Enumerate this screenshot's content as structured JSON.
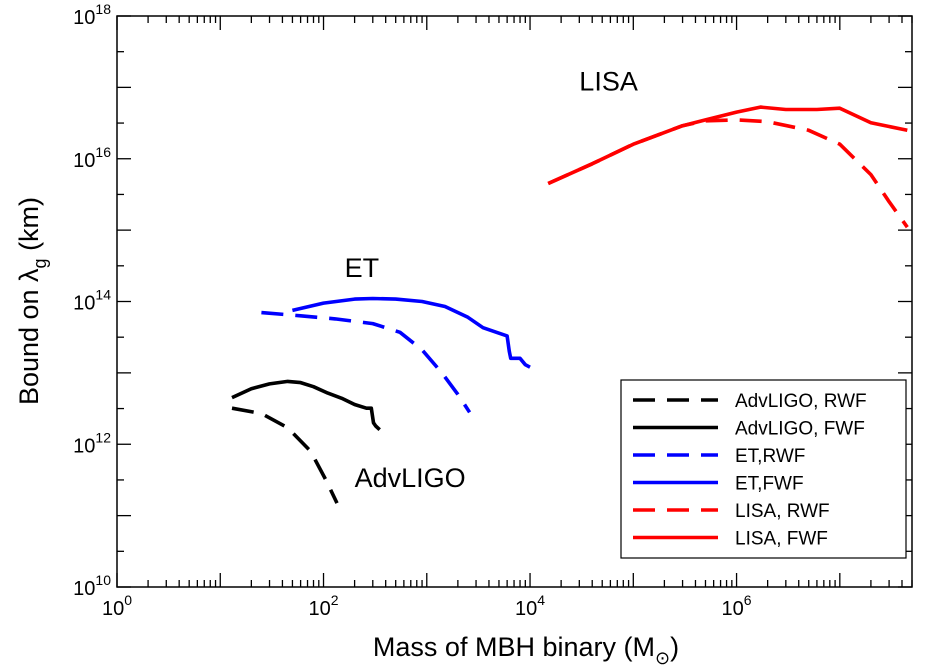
{
  "chart_data": {
    "type": "line",
    "title": "",
    "xlabel": "Mass of MBH binary (M",
    "xlabel_sub": "⊙",
    "xlabel_close": ")",
    "ylabel": "Bound on λ",
    "ylabel_sub": "g",
    "ylabel_tail": " (km)",
    "x_scale": "log",
    "y_scale": "log",
    "xlim": [
      1,
      50000000
    ],
    "ylim": [
      10000000000.0,
      1e+18
    ],
    "x_ticks": [
      {
        "value": 1,
        "base": "10",
        "exp": "0"
      },
      {
        "value": 100,
        "base": "10",
        "exp": "2"
      },
      {
        "value": 10000,
        "base": "10",
        "exp": "4"
      },
      {
        "value": 1000000,
        "base": "10",
        "exp": "6"
      }
    ],
    "y_ticks": [
      {
        "value": 10000000000.0,
        "base": "10",
        "exp": "10"
      },
      {
        "value": 1000000000000.0,
        "base": "10",
        "exp": "12"
      },
      {
        "value": 100000000000000.0,
        "base": "10",
        "exp": "14"
      },
      {
        "value": 1e+16,
        "base": "10",
        "exp": "16"
      },
      {
        "value": 1e+18,
        "base": "10",
        "exp": "18"
      }
    ],
    "grid": false,
    "legend_position": "bottom-right",
    "series": [
      {
        "name": "AdvLIGO, RWF",
        "color": "#000000",
        "dash": "dashed",
        "x": [
          13,
          25,
          45,
          75,
          105,
          135
        ],
        "y": [
          3200000000000.0,
          2700000000000.0,
          1700000000000.0,
          800000000000.0,
          320000000000.0,
          150000000000.0
        ]
      },
      {
        "name": "AdvLIGO, FWF",
        "color": "#000000",
        "dash": "solid",
        "x": [
          13,
          20,
          30,
          45,
          60,
          80,
          110,
          150,
          200,
          260,
          290,
          305,
          320,
          350
        ],
        "y": [
          4500000000000.0,
          6000000000000.0,
          7000000000000.0,
          7600000000000.0,
          7300000000000.0,
          6400000000000.0,
          5200000000000.0,
          4400000000000.0,
          3600000000000.0,
          3200000000000.0,
          3200000000000.0,
          2000000000000.0,
          1800000000000.0,
          1600000000000.0
        ]
      },
      {
        "name": "ET,RWF",
        "color": "#0000ff",
        "dash": "dashed",
        "x": [
          25,
          60,
          130,
          300,
          550,
          900,
          1400,
          2000,
          2600
        ],
        "y": [
          70000000000000.0,
          63000000000000.0,
          57000000000000.0,
          49000000000000.0,
          37000000000000.0,
          21000000000000.0,
          10000000000000.0,
          5000000000000.0,
          2800000000000.0
        ]
      },
      {
        "name": "ET,FWF",
        "color": "#0000ff",
        "dash": "solid",
        "x": [
          50,
          100,
          200,
          300,
          500,
          900,
          1500,
          2500,
          3500,
          5000,
          6000,
          6300,
          6500,
          8000,
          9000,
          10000
        ],
        "y": [
          75000000000000.0,
          95000000000000.0,
          108000000000000.0,
          110000000000000.0,
          108000000000000.0,
          100000000000000.0,
          85000000000000.0,
          60000000000000.0,
          43000000000000.0,
          36000000000000.0,
          33000000000000.0,
          20000000000000.0,
          16000000000000.0,
          16000000000000.0,
          13000000000000.0,
          12000000000000.0
        ]
      },
      {
        "name": "LISA, RWF",
        "color": "#ff0000",
        "dash": "dashed",
        "x": [
          15000,
          40000,
          100000,
          300000,
          500000,
          1000000,
          2000000,
          5000000,
          10000000,
          20000000,
          30000000,
          45000000
        ],
        "y": [
          4500000000000000.0,
          8500000000000000.0,
          1.6e+16,
          2.9e+16,
          3.4e+16,
          3.5e+16,
          3.3e+16,
          2.5e+16,
          1.6e+16,
          6000000000000000.0,
          2500000000000000.0,
          1100000000000000.0
        ]
      },
      {
        "name": "LISA, FWF",
        "color": "#ff0000",
        "dash": "solid",
        "x": [
          15000,
          40000,
          100000,
          300000,
          500000,
          1000000,
          1700000,
          3000000,
          6000000,
          10000000,
          20000000,
          45000000
        ],
        "y": [
          4500000000000000.0,
          8500000000000000.0,
          1.6e+16,
          2.9e+16,
          3.5e+16,
          4.5e+16,
          5.3e+16,
          4.9e+16,
          4.9e+16,
          5.1e+16,
          3.2e+16,
          2.5e+16
        ]
      }
    ],
    "annotations": [
      {
        "text": "LISA",
        "x": 30000,
        "y": 9e+16
      },
      {
        "text": "ET",
        "x": 160,
        "y": 220000000000000.0
      },
      {
        "text": "AdvLIGO",
        "x": 200,
        "y": 250000000000.0
      }
    ]
  }
}
